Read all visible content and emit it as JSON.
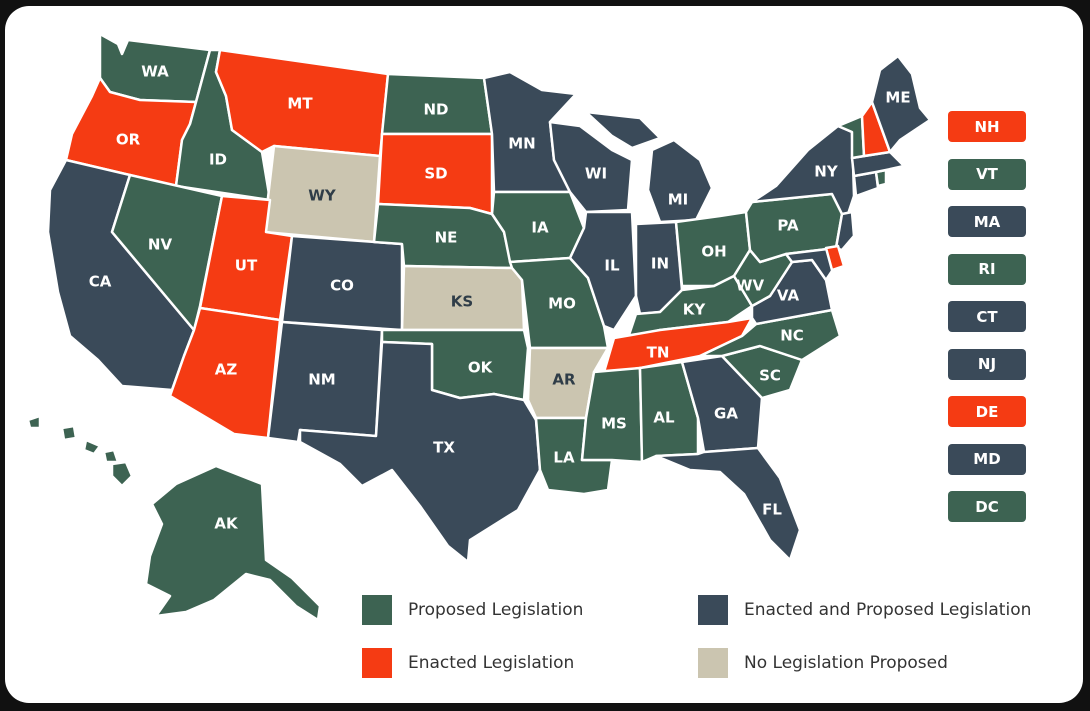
{
  "colors": {
    "proposed": "#3d6352",
    "enacted": "#f53b13",
    "enacted_and_proposed": "#3a4a59",
    "none": "#cbc5b0"
  },
  "states": {
    "WA": {
      "label": "WA",
      "status": "proposed"
    },
    "OR": {
      "label": "OR",
      "status": "enacted"
    },
    "CA": {
      "label": "CA",
      "status": "enacted_and_proposed"
    },
    "ID": {
      "label": "ID",
      "status": "proposed"
    },
    "NV": {
      "label": "NV",
      "status": "proposed"
    },
    "MT": {
      "label": "MT",
      "status": "enacted"
    },
    "WY": {
      "label": "WY",
      "status": "none"
    },
    "UT": {
      "label": "UT",
      "status": "enacted"
    },
    "AZ": {
      "label": "AZ",
      "status": "enacted"
    },
    "CO": {
      "label": "CO",
      "status": "enacted_and_proposed"
    },
    "NM": {
      "label": "NM",
      "status": "enacted_and_proposed"
    },
    "ND": {
      "label": "ND",
      "status": "proposed"
    },
    "SD": {
      "label": "SD",
      "status": "enacted"
    },
    "NE": {
      "label": "NE",
      "status": "proposed"
    },
    "KS": {
      "label": "KS",
      "status": "none"
    },
    "OK": {
      "label": "OK",
      "status": "proposed"
    },
    "TX": {
      "label": "TX",
      "status": "enacted_and_proposed"
    },
    "MN": {
      "label": "MN",
      "status": "enacted_and_proposed"
    },
    "IA": {
      "label": "IA",
      "status": "proposed"
    },
    "MO": {
      "label": "MO",
      "status": "proposed"
    },
    "AR": {
      "label": "AR",
      "status": "none"
    },
    "LA": {
      "label": "LA",
      "status": "proposed"
    },
    "WI": {
      "label": "WI",
      "status": "enacted_and_proposed"
    },
    "IL": {
      "label": "IL",
      "status": "enacted_and_proposed"
    },
    "MI": {
      "label": "MI",
      "status": "enacted_and_proposed"
    },
    "IN": {
      "label": "IN",
      "status": "enacted_and_proposed"
    },
    "OH": {
      "label": "OH",
      "status": "proposed"
    },
    "KY": {
      "label": "KY",
      "status": "proposed"
    },
    "TN": {
      "label": "TN",
      "status": "enacted"
    },
    "MS": {
      "label": "MS",
      "status": "proposed"
    },
    "AL": {
      "label": "AL",
      "status": "proposed"
    },
    "GA": {
      "label": "GA",
      "status": "enacted_and_proposed"
    },
    "FL": {
      "label": "FL",
      "status": "enacted_and_proposed"
    },
    "SC": {
      "label": "SC",
      "status": "proposed"
    },
    "NC": {
      "label": "NC",
      "status": "proposed"
    },
    "VA": {
      "label": "VA",
      "status": "enacted_and_proposed"
    },
    "WV": {
      "label": "WV",
      "status": "proposed"
    },
    "PA": {
      "label": "PA",
      "status": "proposed"
    },
    "NY": {
      "label": "NY",
      "status": "enacted_and_proposed"
    },
    "ME": {
      "label": "ME",
      "status": "enacted_and_proposed"
    },
    "HI": {
      "label": "HI",
      "status": "proposed"
    },
    "AK": {
      "label": "AK",
      "status": "proposed"
    }
  },
  "small_states": [
    {
      "label": "NH",
      "status": "enacted"
    },
    {
      "label": "VT",
      "status": "proposed"
    },
    {
      "label": "MA",
      "status": "enacted_and_proposed"
    },
    {
      "label": "RI",
      "status": "proposed"
    },
    {
      "label": "CT",
      "status": "enacted_and_proposed"
    },
    {
      "label": "NJ",
      "status": "enacted_and_proposed"
    },
    {
      "label": "DE",
      "status": "enacted"
    },
    {
      "label": "MD",
      "status": "enacted_and_proposed"
    },
    {
      "label": "DC",
      "status": "proposed"
    }
  ],
  "legend": {
    "proposed": "Proposed Legislation",
    "enacted_and_proposed": "Enacted and Proposed Legislation",
    "enacted": "Enacted Legislation",
    "none": "No Legislation Proposed"
  }
}
